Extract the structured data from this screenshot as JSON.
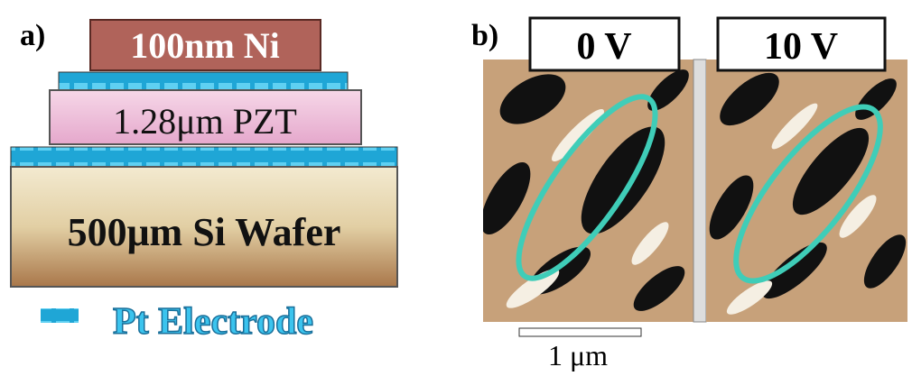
{
  "panel_a": {
    "label": "a)",
    "layers": {
      "ni": "100nm Ni",
      "pzt": "1.28μm PZT",
      "si": "500μm Si Wafer"
    },
    "legend": "Pt Electrode"
  },
  "panel_b": {
    "label": "b)",
    "images": [
      "0 V",
      "10 V"
    ],
    "scale_bar": "1 μm"
  }
}
